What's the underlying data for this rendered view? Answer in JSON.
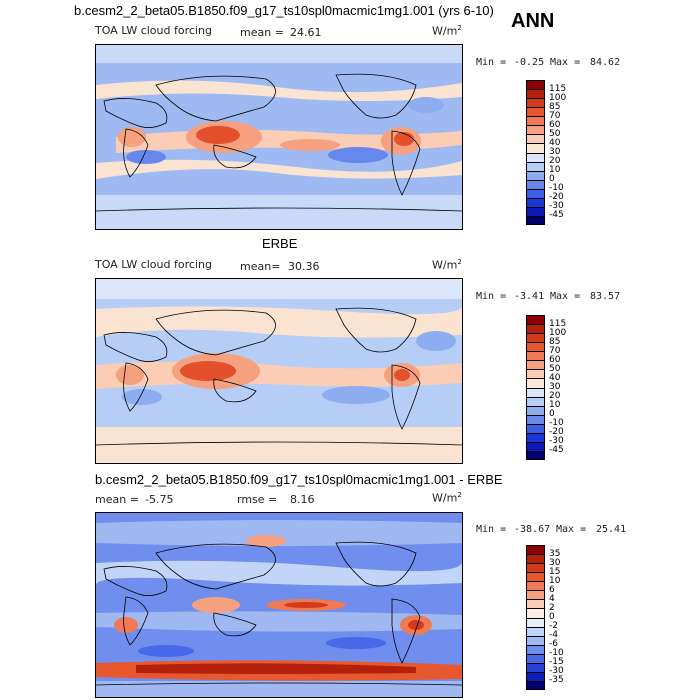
{
  "header": {
    "title": "b.cesm2_2_beta05.B1850.f09_g17_ts10spl0macmic1mg1.001 (yrs 6-10)",
    "season": "ANN"
  },
  "panels": [
    {
      "id": "model",
      "field_label": "TOA LW cloud forcing",
      "stat_label": "mean =",
      "stat_value": "24.61",
      "units": "W/m",
      "units_sup": "2",
      "min_label": "Min =",
      "min_value": "-0.25",
      "max_label": "Max =",
      "max_value": "84.62",
      "colorbar": {
        "levels": [
          "115",
          "100",
          "85",
          "70",
          "60",
          "50",
          "40",
          "30",
          "20",
          "10",
          "0",
          "-10",
          "-20",
          "-30",
          "-45"
        ],
        "colors": [
          "#8b0000",
          "#b3200c",
          "#d13a1a",
          "#e8582f",
          "#f07a55",
          "#f5a07f",
          "#fbcdb4",
          "#fce8d8",
          "#dbe6fa",
          "#b6cdf6",
          "#8eacf0",
          "#6688ec",
          "#3c5fe6",
          "#1a35d6",
          "#0a18b8",
          "#00006e"
        ]
      }
    },
    {
      "id": "obs",
      "heading": "ERBE",
      "field_label": "TOA LW cloud forcing",
      "stat_label": "mean=",
      "stat_value": "30.36",
      "units": "W/m",
      "units_sup": "2",
      "min_label": "Min =",
      "min_value": "-3.41",
      "max_label": "Max =",
      "max_value": "83.57",
      "colorbar": {
        "levels": [
          "115",
          "100",
          "85",
          "70",
          "60",
          "50",
          "40",
          "30",
          "20",
          "10",
          "0",
          "-10",
          "-20",
          "-30",
          "-45"
        ],
        "colors": [
          "#8b0000",
          "#b3200c",
          "#d13a1a",
          "#e8582f",
          "#f07a55",
          "#f5a07f",
          "#fbcdb4",
          "#fce8d8",
          "#dbe6fa",
          "#b6cdf6",
          "#8eacf0",
          "#6688ec",
          "#3c5fe6",
          "#1a35d6",
          "#0a18b8",
          "#00006e"
        ]
      }
    },
    {
      "id": "diff",
      "heading": "b.cesm2_2_beta05.B1850.f09_g17_ts10spl0macmic1mg1.001 - ERBE",
      "stat_label": "mean =",
      "stat_value": "-5.75",
      "stat2_label": "rmse =",
      "stat2_value": "8.16",
      "units": "W/m",
      "units_sup": "2",
      "min_label": "Min =",
      "min_value": "-38.67",
      "max_label": "Max =",
      "max_value": "25.41",
      "colorbar": {
        "levels": [
          "35",
          "30",
          "15",
          "10",
          "6",
          "4",
          "2",
          "0",
          "-2",
          "-4",
          "-6",
          "-10",
          "-15",
          "-30",
          "-35"
        ],
        "colors": [
          "#8b0000",
          "#b3200c",
          "#d13a1a",
          "#e8582f",
          "#f07a55",
          "#f5a07f",
          "#fbcdb4",
          "#fdeee4",
          "#e6eefc",
          "#c2d4f7",
          "#9fb8f2",
          "#6f8eed",
          "#4768e8",
          "#2442d6",
          "#0d1fb8",
          "#00006e"
        ]
      }
    }
  ],
  "colors": {
    "map_base": "#9fbaf2",
    "map_light": "#c9d9f8",
    "warm_light": "#fbe3d2",
    "warm_mid": "#f5a07f",
    "warm_strong": "#e4502c",
    "cool_deep": "#3c5fe6",
    "coast": "#000000"
  }
}
